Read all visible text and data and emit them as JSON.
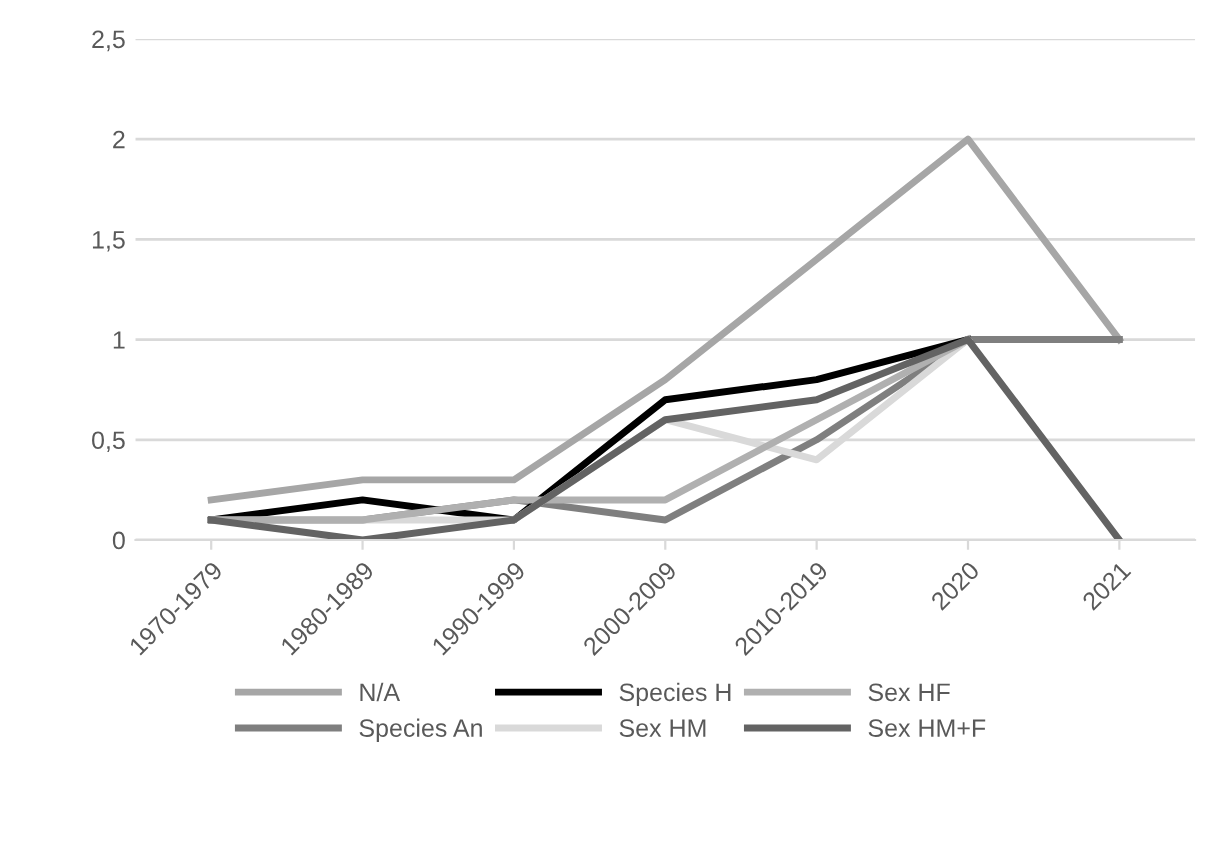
{
  "chart_data": {
    "type": "line",
    "categories": [
      "1970-1979",
      "1980-1989",
      "1990-1999",
      "2000-2009",
      "2010-2019",
      "2020",
      "2021"
    ],
    "series": [
      {
        "name": "N/A",
        "color": "#a6a6a6",
        "values": [
          0.2,
          0.3,
          0.3,
          0.8,
          1.4,
          2,
          1
        ]
      },
      {
        "name": "Species An",
        "color": "#7f7f7f",
        "values": [
          0.1,
          0.1,
          0.2,
          0.1,
          0.5,
          1,
          1
        ]
      },
      {
        "name": "Species H",
        "color": "#000000",
        "values": [
          0.1,
          0.2,
          0.1,
          0.7,
          0.8,
          1,
          null
        ]
      },
      {
        "name": "Sex HM",
        "color": "#d9d9d9",
        "values": [
          0.1,
          0.1,
          0.1,
          0.6,
          0.4,
          1,
          null
        ]
      },
      {
        "name": "Sex HF",
        "color": "#b0b0b0",
        "values": [
          0.1,
          0.1,
          0.2,
          0.2,
          0.6,
          1,
          null
        ]
      },
      {
        "name": "Sex HM+F",
        "color": "#636363",
        "values": [
          0.1,
          0,
          0.1,
          0.6,
          0.7,
          1,
          0
        ]
      }
    ],
    "ylim": [
      0,
      2.5
    ],
    "yticks": [
      {
        "value": 0,
        "label": "0"
      },
      {
        "value": 0.5,
        "label": "0,5"
      },
      {
        "value": 1,
        "label": "1"
      },
      {
        "value": 1.5,
        "label": "1,5"
      },
      {
        "value": 2,
        "label": "2"
      },
      {
        "value": 2.5,
        "label": "2,5"
      }
    ],
    "grid": "y",
    "legend": "bottom",
    "marker": "none",
    "line_style": "solid"
  }
}
